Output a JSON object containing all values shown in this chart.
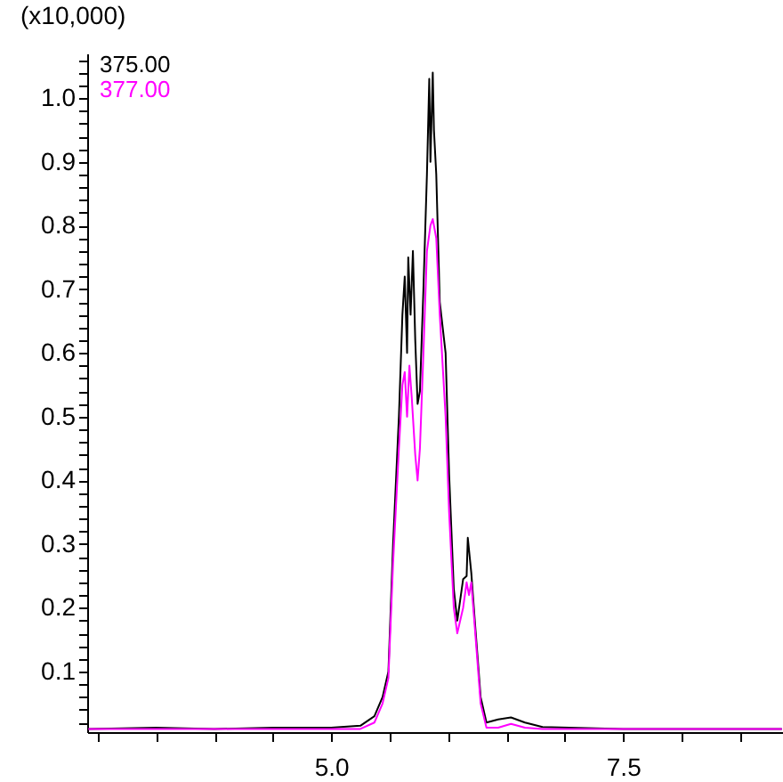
{
  "chart_data": {
    "type": "line",
    "ylabel": "(x10,000)",
    "xlim": [
      2.91,
      8.87
    ],
    "xticks": [
      {
        "value": 3,
        "label": null
      },
      {
        "value": 3.5,
        "label": null
      },
      {
        "value": 4,
        "label": null
      },
      {
        "value": 4.5,
        "label": null
      },
      {
        "value": 5,
        "label": "5.0"
      },
      {
        "value": 5.5,
        "label": null
      },
      {
        "value": 6,
        "label": null
      },
      {
        "value": 6.5,
        "label": null
      },
      {
        "value": 7,
        "label": null
      },
      7.5,
      {
        "value": 8,
        "label": null
      },
      {
        "value": 8.5,
        "label": null
      }
    ],
    "ylim": [
      0.005,
      1.07
    ],
    "yticks": [
      {
        "value": 0.02,
        "label": null
      },
      {
        "value": 0.04,
        "label": null
      },
      {
        "value": 0.06,
        "label": null
      },
      {
        "value": 0.08,
        "label": null
      },
      0.1,
      {
        "value": 0.12,
        "label": null
      },
      {
        "value": 0.14,
        "label": null
      },
      {
        "value": 0.16,
        "label": null
      },
      {
        "value": 0.18,
        "label": null
      },
      0.2,
      {
        "value": 0.22,
        "label": null
      },
      {
        "value": 0.24,
        "label": null
      },
      {
        "value": 0.26,
        "label": null
      },
      {
        "value": 0.28,
        "label": null
      },
      0.3,
      {
        "value": 0.32,
        "label": null
      },
      {
        "value": 0.34,
        "label": null
      },
      {
        "value": 0.36,
        "label": null
      },
      {
        "value": 0.38,
        "label": null
      },
      0.4,
      {
        "value": 0.42,
        "label": null
      },
      {
        "value": 0.44,
        "label": null
      },
      {
        "value": 0.46,
        "label": null
      },
      {
        "value": 0.48,
        "label": null
      },
      0.5,
      {
        "value": 0.52,
        "label": null
      },
      {
        "value": 0.54,
        "label": null
      },
      {
        "value": 0.56,
        "label": null
      },
      {
        "value": 0.58,
        "label": null
      },
      0.6,
      {
        "value": 0.62,
        "label": null
      },
      {
        "value": 0.64,
        "label": null
      },
      {
        "value": 0.66,
        "label": null
      },
      {
        "value": 0.68,
        "label": null
      },
      0.7,
      {
        "value": 0.72,
        "label": null
      },
      {
        "value": 0.74,
        "label": null
      },
      {
        "value": 0.76,
        "label": null
      },
      {
        "value": 0.78,
        "label": null
      },
      0.8,
      {
        "value": 0.82,
        "label": null
      },
      {
        "value": 0.84,
        "label": null
      },
      {
        "value": 0.86,
        "label": null
      },
      {
        "value": 0.88,
        "label": null
      },
      0.9,
      {
        "value": 0.92,
        "label": null
      },
      {
        "value": 0.94,
        "label": null
      },
      {
        "value": 0.96,
        "label": null
      },
      {
        "value": 0.98,
        "label": null
      },
      {
        "value": 1,
        "label": "1.0"
      },
      {
        "value": 1.02,
        "label": null
      },
      {
        "value": 1.04,
        "label": null
      },
      {
        "value": 1.06,
        "label": null
      }
    ],
    "grid": false,
    "legend": "top left",
    "marker": "none",
    "line_style": "solid",
    "series": [
      {
        "name": "375.00",
        "color": "#000000",
        "x": [
          2.92,
          3.5,
          4.0,
          4.5,
          5.0,
          5.25,
          5.37,
          5.44,
          5.49,
          5.53,
          5.58,
          5.61,
          5.63,
          5.65,
          5.66,
          5.68,
          5.7,
          5.72,
          5.74,
          5.76,
          5.79,
          5.82,
          5.84,
          5.85,
          5.87,
          5.88,
          5.9,
          5.93,
          5.98,
          6.01,
          6.05,
          6.08,
          6.13,
          6.16,
          6.17,
          6.2,
          6.23,
          6.28,
          6.33,
          6.43,
          6.54,
          6.66,
          6.81,
          7.04,
          7.5,
          8.0,
          8.5,
          8.86
        ],
        "values": [
          0.01,
          0.012,
          0.01,
          0.012,
          0.012,
          0.015,
          0.03,
          0.06,
          0.1,
          0.3,
          0.5,
          0.66,
          0.72,
          0.6,
          0.75,
          0.66,
          0.76,
          0.62,
          0.52,
          0.54,
          0.7,
          0.88,
          1.03,
          0.9,
          1.04,
          0.95,
          0.88,
          0.68,
          0.6,
          0.41,
          0.23,
          0.18,
          0.245,
          0.25,
          0.31,
          0.255,
          0.18,
          0.06,
          0.02,
          0.025,
          0.028,
          0.02,
          0.013,
          0.012,
          0.01,
          0.01,
          0.01,
          0.01
        ]
      },
      {
        "name": "377.00",
        "color": "#ff00ff",
        "x": [
          2.92,
          3.5,
          4.0,
          4.5,
          5.0,
          5.25,
          5.37,
          5.44,
          5.49,
          5.53,
          5.58,
          5.61,
          5.63,
          5.65,
          5.67,
          5.69,
          5.72,
          5.74,
          5.76,
          5.79,
          5.82,
          5.85,
          5.87,
          5.9,
          5.93,
          5.98,
          6.01,
          6.05,
          6.08,
          6.13,
          6.16,
          6.18,
          6.2,
          6.23,
          6.28,
          6.33,
          6.43,
          6.54,
          6.66,
          6.81,
          7.5,
          8.0,
          8.5,
          8.86
        ],
        "values": [
          0.01,
          0.01,
          0.01,
          0.01,
          0.01,
          0.01,
          0.02,
          0.05,
          0.09,
          0.27,
          0.45,
          0.55,
          0.57,
          0.5,
          0.58,
          0.53,
          0.44,
          0.4,
          0.45,
          0.6,
          0.76,
          0.8,
          0.81,
          0.78,
          0.66,
          0.5,
          0.35,
          0.2,
          0.16,
          0.2,
          0.24,
          0.22,
          0.24,
          0.17,
          0.05,
          0.012,
          0.012,
          0.018,
          0.012,
          0.01,
          0.01,
          0.01,
          0.01,
          0.01
        ]
      }
    ]
  }
}
